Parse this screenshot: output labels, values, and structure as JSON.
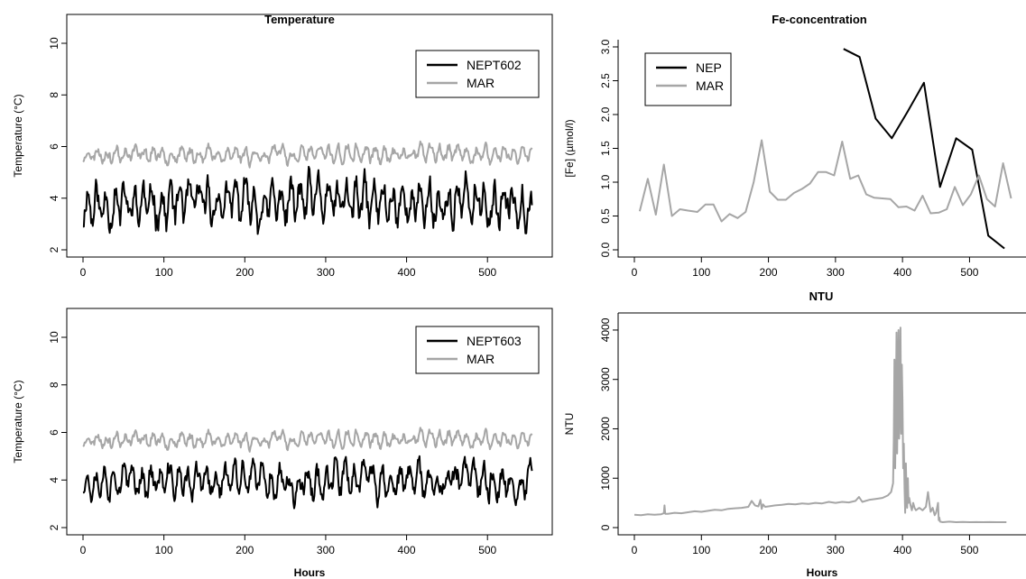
{
  "chart_data": [
    {
      "id": "temp1",
      "type": "line",
      "title": "Temperature",
      "xlabel": "",
      "ylabel": "Temperature (°C)",
      "xlim": [
        0,
        560
      ],
      "ylim": [
        2,
        10
      ],
      "xticks": [
        0,
        100,
        200,
        300,
        400,
        500
      ],
      "yticks": [
        2,
        4,
        6,
        8,
        10
      ],
      "frame": "box",
      "legend_position": "top-right",
      "series": [
        {
          "name": "NEPT602",
          "color": "#000000",
          "pattern": "noisy",
          "base": 3.8,
          "amp": 0.95,
          "n": 555,
          "seed": 11,
          "x": [
            0,
            555
          ]
        },
        {
          "name": "MAR",
          "color": "#a6a6a6",
          "pattern": "noisy",
          "base": 5.7,
          "amp": 0.35,
          "n": 555,
          "seed": 23,
          "x": [
            0,
            555
          ]
        }
      ]
    },
    {
      "id": "fe",
      "type": "line",
      "title": "Fe-concentration",
      "xlabel": "",
      "ylabel": "[Fe] (µmol/l)",
      "xlim": [
        0,
        560
      ],
      "ylim": [
        0,
        3
      ],
      "xticks": [
        0,
        100,
        200,
        300,
        400,
        500
      ],
      "yticks": [
        0,
        0.5,
        1,
        1.5,
        2,
        2.5,
        3
      ],
      "ytick_labels": [
        "0.0",
        "0.5",
        "1.0",
        "1.5",
        "2.0",
        "2.5",
        "3.0"
      ],
      "frame": "open",
      "legend_position": "top-left",
      "series": [
        {
          "name": "NEP",
          "color": "#000000",
          "x": [
            312,
            336,
            360,
            384,
            408,
            432,
            456,
            480,
            504,
            528,
            552
          ],
          "y": [
            2.97,
            2.85,
            1.94,
            1.65,
            2.05,
            2.47,
            0.93,
            1.65,
            1.48,
            0.21,
            0.02
          ]
        },
        {
          "name": "MAR",
          "color": "#a6a6a6",
          "x": [
            8,
            20,
            32,
            44,
            56,
            68,
            80,
            94,
            106,
            118,
            130,
            142,
            154,
            166,
            178,
            190,
            202,
            214,
            226,
            238,
            250,
            262,
            274,
            286,
            298,
            310,
            322,
            334,
            346,
            358,
            370,
            382,
            394,
            406,
            418,
            430,
            442,
            454,
            466,
            478,
            490,
            502,
            514,
            526,
            538,
            550,
            562
          ],
          "y": [
            0.57,
            1.05,
            0.52,
            1.26,
            0.5,
            0.6,
            0.58,
            0.56,
            0.67,
            0.67,
            0.42,
            0.53,
            0.47,
            0.56,
            1.0,
            1.62,
            0.86,
            0.74,
            0.74,
            0.84,
            0.9,
            0.98,
            1.15,
            1.15,
            1.1,
            1.6,
            1.05,
            1.1,
            0.82,
            0.77,
            0.76,
            0.75,
            0.63,
            0.64,
            0.58,
            0.8,
            0.54,
            0.55,
            0.6,
            0.93,
            0.66,
            0.82,
            1.1,
            0.75,
            0.64,
            1.28,
            0.76
          ]
        }
      ]
    },
    {
      "id": "temp2",
      "type": "line",
      "title": "",
      "xlabel": "Hours",
      "ylabel": "Temperature (°C)",
      "xlim": [
        0,
        560
      ],
      "ylim": [
        2,
        10
      ],
      "xticks": [
        0,
        100,
        200,
        300,
        400,
        500
      ],
      "yticks": [
        2,
        4,
        6,
        8,
        10
      ],
      "frame": "box",
      "legend_position": "top-right",
      "series": [
        {
          "name": "NEPT603",
          "color": "#000000",
          "pattern": "noisy",
          "base": 3.95,
          "amp": 0.75,
          "n": 555,
          "seed": 37,
          "x": [
            0,
            555
          ]
        },
        {
          "name": "MAR",
          "color": "#a6a6a6",
          "pattern": "noisy",
          "base": 5.7,
          "amp": 0.35,
          "n": 555,
          "seed": 23,
          "x": [
            0,
            555
          ]
        }
      ]
    },
    {
      "id": "ntu",
      "type": "line",
      "title": "NTU",
      "xlabel": "Hours",
      "ylabel": "NTU",
      "xlim": [
        0,
        560
      ],
      "ylim": [
        0,
        4200
      ],
      "xticks": [
        0,
        100,
        200,
        300,
        400,
        500
      ],
      "yticks": [
        0,
        1000,
        2000,
        3000,
        4000
      ],
      "frame": "open",
      "legend_position": "none",
      "series": [
        {
          "name": "",
          "color": "#a6a6a6",
          "x": [
            0,
            10,
            20,
            30,
            40,
            44,
            45,
            46,
            50,
            60,
            70,
            80,
            90,
            100,
            110,
            120,
            130,
            140,
            150,
            160,
            170,
            175,
            180,
            185,
            188,
            190,
            192,
            195,
            200,
            210,
            220,
            230,
            240,
            250,
            260,
            270,
            280,
            290,
            300,
            310,
            320,
            330,
            335,
            340,
            350,
            360,
            370,
            378,
            383,
            386,
            387,
            388,
            389,
            390,
            391,
            392,
            393,
            394,
            395,
            396,
            397,
            398,
            399,
            400,
            401,
            402,
            403,
            404,
            405,
            406,
            407,
            408,
            409,
            410,
            412,
            414,
            416,
            418,
            420,
            425,
            430,
            435,
            438,
            440,
            442,
            445,
            448,
            450,
            452,
            453,
            454,
            455,
            456,
            460,
            470,
            480,
            490,
            500,
            510,
            520,
            530,
            540,
            550,
            555
          ],
          "y": [
            260,
            250,
            270,
            260,
            270,
            290,
            450,
            280,
            280,
            300,
            290,
            310,
            330,
            320,
            340,
            360,
            350,
            380,
            390,
            400,
            420,
            540,
            450,
            430,
            560,
            380,
            470,
            420,
            430,
            450,
            460,
            480,
            470,
            490,
            480,
            500,
            490,
            520,
            500,
            520,
            510,
            540,
            620,
            520,
            560,
            580,
            600,
            650,
            720,
            900,
            1800,
            3400,
            1200,
            2200,
            3950,
            1500,
            2800,
            4000,
            1800,
            2500,
            4050,
            1900,
            3300,
            2600,
            1200,
            1700,
            800,
            300,
            1300,
            700,
            400,
            1000,
            500,
            600,
            450,
            350,
            500,
            400,
            350,
            400,
            350,
            420,
            720,
            500,
            320,
            400,
            250,
            300,
            430,
            500,
            150,
            200,
            120,
            110,
            120,
            110,
            115,
            110,
            112,
            110,
            112,
            110,
            110,
            110
          ]
        }
      ]
    }
  ]
}
